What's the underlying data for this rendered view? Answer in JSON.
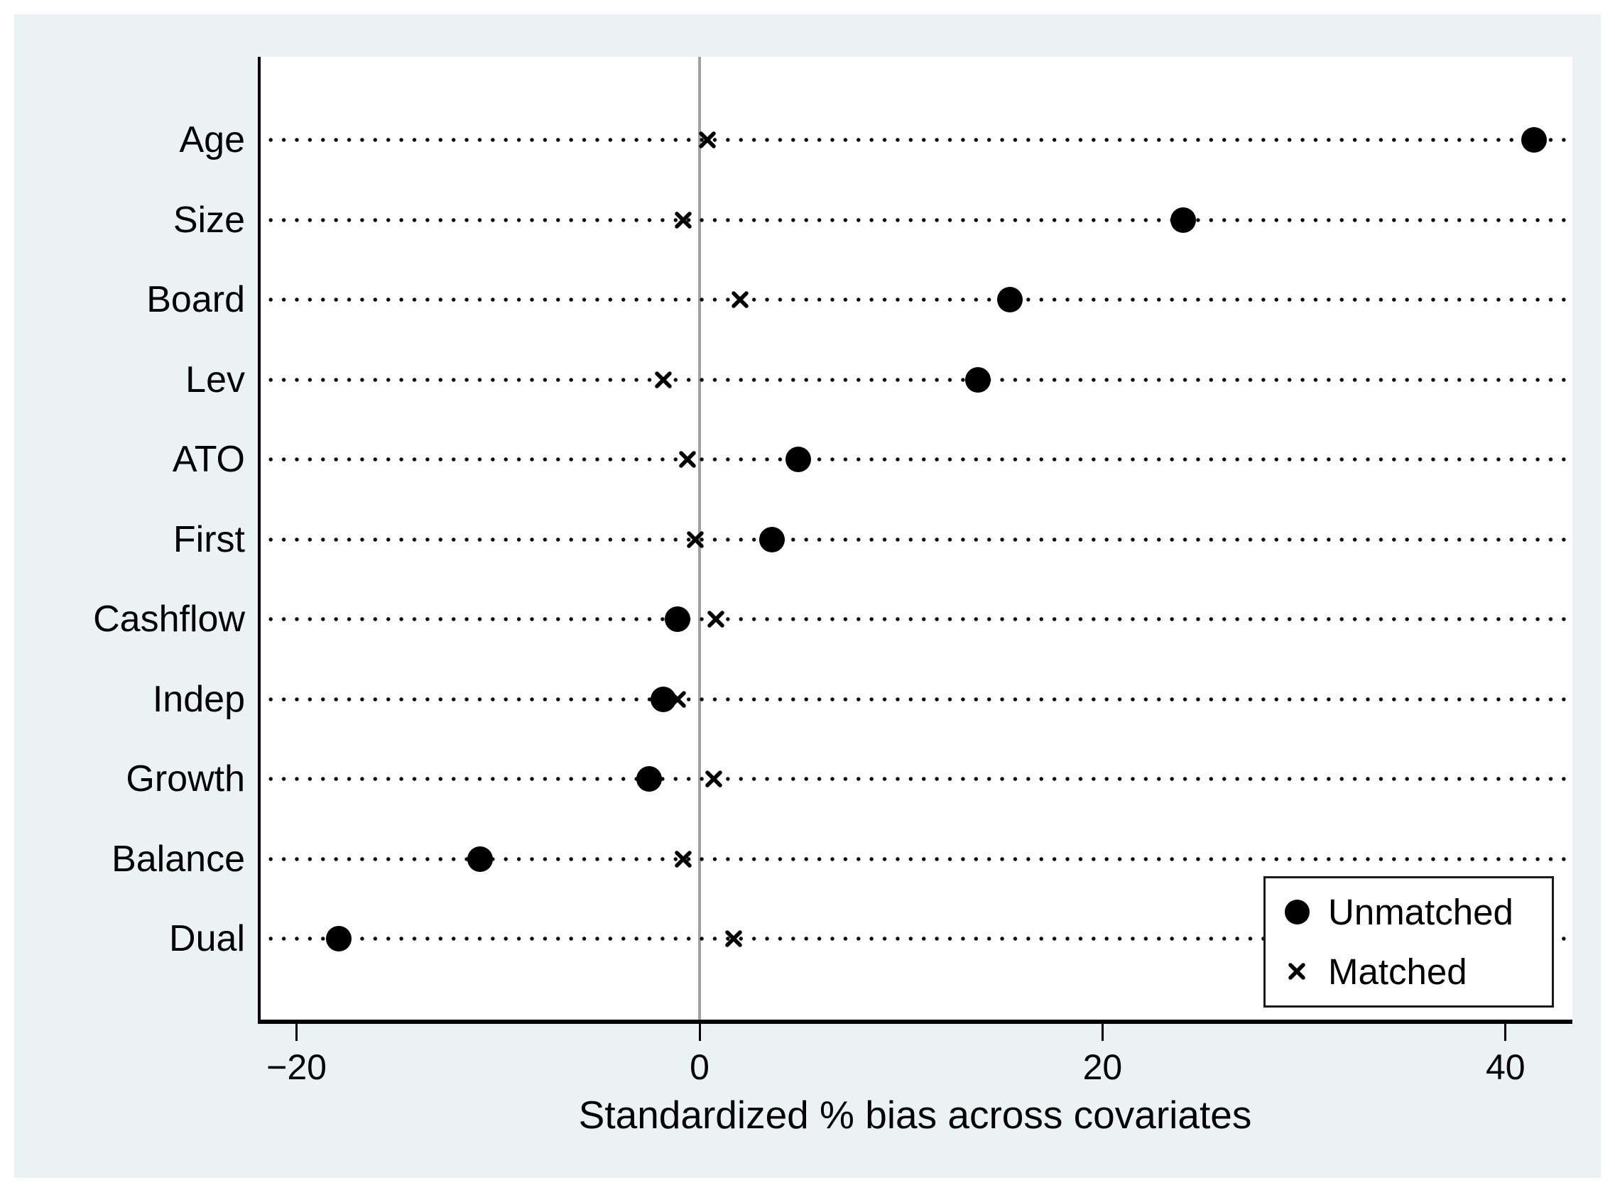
{
  "figure": {
    "outer_background": "#ffffff",
    "graph_background": "#eaf2f3",
    "plot_background": "#ffffff",
    "axis_color": "#000000",
    "zero_line_color": "#a1a1a1",
    "marker_color": "#000000"
  },
  "chart_data": {
    "type": "scatter",
    "subtype": "horizontal-dot-plot",
    "title": "",
    "xlabel": "Standardized % bias across covariates",
    "ylabel": "",
    "categories": [
      "Age",
      "Size",
      "Board",
      "Lev",
      "ATO",
      "First",
      "Cashflow",
      "Indep",
      "Growth",
      "Balance",
      "Dual"
    ],
    "series": [
      {
        "name": "Unmatched",
        "marker": "circle",
        "values": [
          41.4,
          24.0,
          15.4,
          13.8,
          4.9,
          3.6,
          -1.1,
          -1.8,
          -2.5,
          -10.9,
          -17.9
        ]
      },
      {
        "name": "Matched",
        "marker": "x",
        "values": [
          0.4,
          -0.8,
          2.0,
          -1.8,
          -0.6,
          -0.2,
          0.8,
          -1.1,
          0.7,
          -0.8,
          1.7
        ]
      }
    ],
    "x_ticks": [
      -20,
      0,
      20,
      40
    ],
    "x_tick_labels": [
      "−20",
      "0",
      "20",
      "40"
    ],
    "xlim": [
      -21.8,
      43.3
    ],
    "reference_line_x": 0,
    "grid": "dotted horizontal line per category",
    "legend": {
      "position": "inside-bottom-right",
      "entries": [
        {
          "marker": "circle",
          "label": "Unmatched"
        },
        {
          "marker": "x",
          "label": "Matched"
        }
      ]
    }
  }
}
